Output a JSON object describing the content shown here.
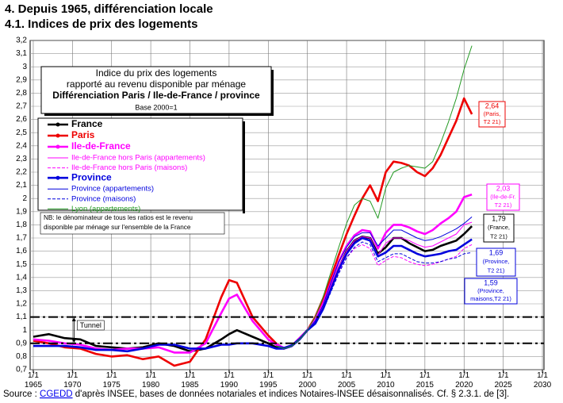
{
  "chart_data": {
    "type": "line",
    "title": "4. Depuis 1965, différenciation locale",
    "subtitle": "4.1. Indices de prix des logements",
    "legend_title": [
      "Indice du prix des logements",
      "rapporté au revenu disponible par ménage",
      "Différenciation Paris / Ile-de-France / province"
    ],
    "legend_subtitle": "Base 2000=1",
    "note": [
      "NB: le dénominateur de tous les ratios est le revenu",
      "disponible par ménage sur l'ensemble de la France"
    ],
    "tunnel_label": "Tunnel",
    "reference_lines": [
      1.1,
      0.9
    ],
    "source": [
      "Source : ",
      "CGEDD",
      " d'après INSEE, bases de données notariales et indices Notaires-INSEE désaisonnalisés.  Cf. § 2.3.1. de [3]."
    ],
    "grid": true,
    "xlim": [
      1964.6,
      2030.2
    ],
    "ylim": [
      0.7,
      3.2
    ],
    "xticks": [
      {
        "value": 1965,
        "label": "1/1 1965"
      },
      {
        "value": 1970,
        "label": "1/1 1970"
      },
      {
        "value": 1975,
        "label": "1/1 1975"
      },
      {
        "value": 1980,
        "label": "1/1 1980"
      },
      {
        "value": 1985,
        "label": "1/1 1985"
      },
      {
        "value": 1990,
        "label": "1/1 1990"
      },
      {
        "value": 1995,
        "label": "1/1 1995"
      },
      {
        "value": 2000,
        "label": "1/1 2000"
      },
      {
        "value": 2005,
        "label": "1/1 2005"
      },
      {
        "value": 2010,
        "label": "1/1 2010"
      },
      {
        "value": 2015,
        "label": "1/1 2015"
      },
      {
        "value": 2020,
        "label": "1/1 2020"
      },
      {
        "value": 2025,
        "label": "1/1 2025"
      },
      {
        "value": 2030,
        "label": "1/1 2030"
      }
    ],
    "yticks": [
      {
        "value": 0.7,
        "label": "0,7"
      },
      {
        "value": 0.8,
        "label": "0,8"
      },
      {
        "value": 0.9,
        "label": "0,9"
      },
      1,
      {
        "value": 1.1,
        "label": "1,1"
      },
      {
        "value": 1.2,
        "label": "1,2"
      },
      {
        "value": 1.3,
        "label": "1,3"
      },
      {
        "value": 1.4,
        "label": "1,4"
      },
      {
        "value": 1.5,
        "label": "1,5"
      },
      {
        "value": 1.6,
        "label": "1,6"
      },
      {
        "value": 1.7,
        "label": "1,7"
      },
      {
        "value": 1.8,
        "label": "1,8"
      },
      {
        "value": 1.9,
        "label": "1,9"
      },
      2,
      {
        "value": 2.1,
        "label": "2,1"
      },
      {
        "value": 2.2,
        "label": "2,2"
      },
      {
        "value": 2.3,
        "label": "2,3"
      },
      {
        "value": 2.4,
        "label": "2,4"
      },
      {
        "value": 2.5,
        "label": "2,5"
      },
      {
        "value": 2.6,
        "label": "2,6"
      },
      {
        "value": 2.7,
        "label": "2,7"
      },
      {
        "value": 2.8,
        "label": "2,8"
      },
      {
        "value": 2.9,
        "label": "2,9"
      },
      3,
      {
        "value": 3.1,
        "label": "3,1"
      },
      {
        "value": 3.2,
        "label": "3,2"
      }
    ],
    "x": [
      1965,
      1967,
      1969,
      1971,
      1973,
      1975,
      1977,
      1979,
      1981,
      1983,
      1985,
      1987,
      1989,
      1990,
      1991,
      1993,
      1995,
      1996,
      1997,
      1998,
      1999,
      2000,
      2001,
      2002,
      2003,
      2004,
      2005,
      2006,
      2007,
      2008,
      2009,
      2010,
      2011,
      2012,
      2013,
      2014,
      2015,
      2016,
      2017,
      2018,
      2019,
      2020,
      2021
    ],
    "series": [
      {
        "name": "France",
        "color": "#000000",
        "style": "thick",
        "dash": false,
        "end_label": [
          "1,79",
          "(France,",
          "T2 21)"
        ],
        "values": [
          0.95,
          0.97,
          0.94,
          0.93,
          0.88,
          0.87,
          0.86,
          0.87,
          0.9,
          0.88,
          0.84,
          0.86,
          0.93,
          0.97,
          1.0,
          0.95,
          0.9,
          0.87,
          0.86,
          0.88,
          0.93,
          1.0,
          1.06,
          1.17,
          1.32,
          1.47,
          1.6,
          1.68,
          1.71,
          1.7,
          1.58,
          1.63,
          1.7,
          1.7,
          1.66,
          1.63,
          1.6,
          1.61,
          1.64,
          1.66,
          1.68,
          1.73,
          1.79
        ]
      },
      {
        "name": "Paris",
        "color": "#ee0000",
        "style": "thick",
        "dash": false,
        "end_label": [
          "2,64",
          "(Paris,",
          "T2 21)"
        ],
        "values": [
          0.92,
          0.9,
          0.87,
          0.86,
          0.82,
          0.8,
          0.81,
          0.78,
          0.8,
          0.73,
          0.76,
          0.93,
          1.25,
          1.38,
          1.36,
          1.1,
          0.96,
          0.9,
          0.86,
          0.88,
          0.94,
          1.0,
          1.1,
          1.24,
          1.4,
          1.57,
          1.73,
          1.87,
          2.0,
          2.1,
          1.98,
          2.2,
          2.28,
          2.27,
          2.25,
          2.2,
          2.17,
          2.23,
          2.33,
          2.46,
          2.59,
          2.76,
          2.64
        ]
      },
      {
        "name": "Ile-de-France",
        "color": "#ff00ff",
        "style": "thick",
        "dash": false,
        "end_label": [
          "2,03",
          "(Ile-de-Fr.",
          "T2 21)"
        ],
        "values": [
          0.93,
          0.92,
          0.9,
          0.89,
          0.86,
          0.85,
          0.86,
          0.86,
          0.87,
          0.83,
          0.83,
          0.9,
          1.13,
          1.24,
          1.27,
          1.07,
          0.93,
          0.89,
          0.86,
          0.88,
          0.94,
          1.0,
          1.08,
          1.2,
          1.36,
          1.52,
          1.64,
          1.72,
          1.76,
          1.75,
          1.62,
          1.74,
          1.8,
          1.8,
          1.78,
          1.75,
          1.73,
          1.76,
          1.81,
          1.85,
          1.9,
          2.01,
          2.03
        ]
      },
      {
        "name": "Ile-de-France hors Paris (appartements)",
        "color": "#ff00ff",
        "style": "thin",
        "dash": false,
        "values": [
          null,
          null,
          null,
          null,
          null,
          null,
          null,
          null,
          null,
          null,
          null,
          null,
          null,
          null,
          null,
          null,
          null,
          0.9,
          0.87,
          0.89,
          0.94,
          1.0,
          1.07,
          1.18,
          1.33,
          1.48,
          1.6,
          1.68,
          1.71,
          1.7,
          1.57,
          1.66,
          1.7,
          1.7,
          1.68,
          1.65,
          1.63,
          1.64,
          1.67,
          1.7,
          1.73,
          1.8,
          1.82
        ]
      },
      {
        "name": "Ile-de-France hors Paris (maisons)",
        "color": "#ff00ff",
        "style": "thin",
        "dash": true,
        "values": [
          null,
          null,
          null,
          null,
          null,
          null,
          null,
          null,
          null,
          null,
          null,
          null,
          null,
          null,
          null,
          null,
          null,
          0.9,
          0.87,
          0.88,
          0.93,
          1.0,
          1.06,
          1.16,
          1.3,
          1.44,
          1.55,
          1.62,
          1.65,
          1.62,
          1.49,
          1.53,
          1.56,
          1.55,
          1.52,
          1.5,
          1.49,
          1.5,
          1.52,
          1.54,
          1.56,
          1.62,
          1.65
        ]
      },
      {
        "name": "Province",
        "color": "#0000dd",
        "style": "thick",
        "dash": false,
        "end_label": [
          "1,69",
          "(Province,",
          "T2 21)"
        ],
        "values": [
          0.88,
          0.88,
          0.88,
          0.87,
          0.85,
          0.85,
          0.84,
          0.86,
          0.89,
          0.89,
          0.86,
          0.86,
          0.89,
          0.89,
          0.9,
          0.9,
          0.88,
          0.86,
          0.86,
          0.88,
          0.93,
          1.0,
          1.05,
          1.16,
          1.31,
          1.46,
          1.58,
          1.66,
          1.7,
          1.68,
          1.56,
          1.59,
          1.64,
          1.64,
          1.61,
          1.58,
          1.56,
          1.57,
          1.58,
          1.6,
          1.61,
          1.65,
          1.69
        ]
      },
      {
        "name": "Province (appartements)",
        "color": "#0000dd",
        "style": "thin",
        "dash": false,
        "values": [
          null,
          null,
          null,
          null,
          null,
          null,
          null,
          null,
          null,
          null,
          null,
          null,
          null,
          null,
          null,
          null,
          null,
          0.88,
          0.87,
          0.89,
          0.94,
          1.0,
          1.07,
          1.19,
          1.36,
          1.52,
          1.63,
          1.71,
          1.74,
          1.74,
          1.64,
          1.7,
          1.76,
          1.76,
          1.73,
          1.7,
          1.68,
          1.69,
          1.71,
          1.74,
          1.77,
          1.81,
          1.86
        ]
      },
      {
        "name": "Province (maisons)",
        "color": "#0000dd",
        "style": "thin",
        "dash": true,
        "end_label": [
          "1,59",
          "(Province,",
          "maisons,T2 21)"
        ],
        "values": [
          null,
          null,
          null,
          null,
          null,
          null,
          null,
          null,
          null,
          null,
          null,
          null,
          null,
          null,
          null,
          null,
          null,
          0.88,
          0.86,
          0.88,
          0.93,
          1.0,
          1.05,
          1.15,
          1.29,
          1.43,
          1.55,
          1.63,
          1.67,
          1.65,
          1.52,
          1.55,
          1.58,
          1.58,
          1.55,
          1.52,
          1.51,
          1.51,
          1.52,
          1.54,
          1.55,
          1.58,
          1.59
        ]
      },
      {
        "name": "Lyon (appartements)",
        "color": "#229922",
        "style": "thin",
        "dash": false,
        "values": [
          null,
          null,
          null,
          null,
          null,
          null,
          null,
          null,
          null,
          null,
          null,
          null,
          null,
          null,
          null,
          null,
          null,
          0.88,
          0.86,
          0.88,
          0.93,
          1.0,
          1.1,
          1.25,
          1.44,
          1.63,
          1.81,
          1.95,
          2.0,
          1.98,
          1.85,
          2.08,
          2.2,
          2.23,
          2.25,
          2.24,
          2.23,
          2.28,
          2.42,
          2.58,
          2.76,
          2.98,
          3.16
        ]
      }
    ]
  }
}
